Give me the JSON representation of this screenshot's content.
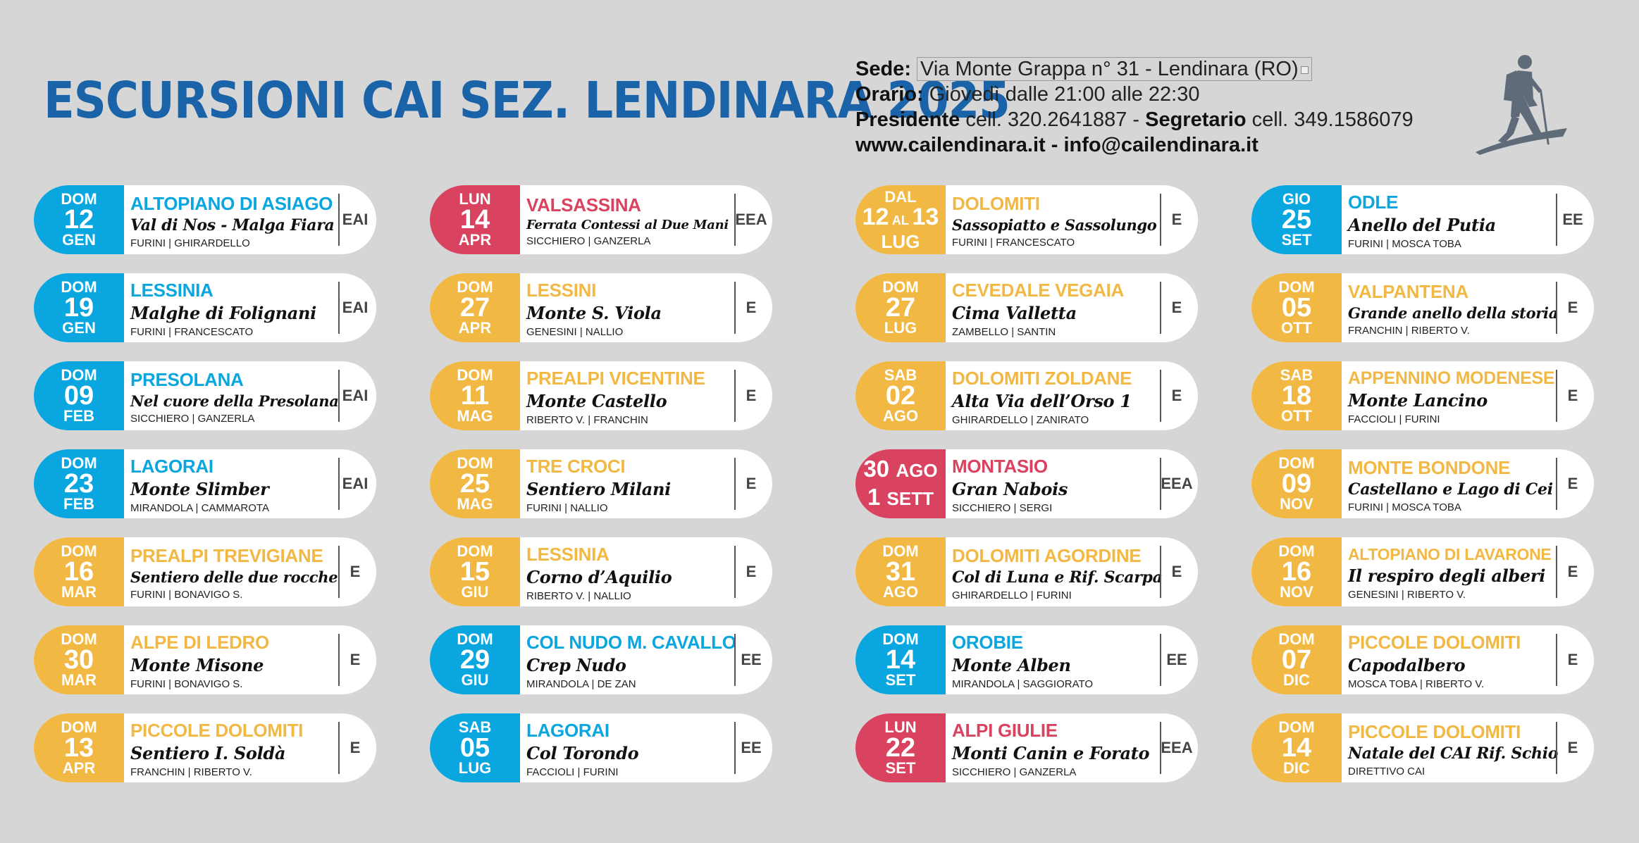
{
  "header": {
    "title": "ESCURSIONI CAI SEZ. LENDINARA 2025",
    "sede_label": "Sede:",
    "sede_value": "Via Monte Grappa n° 31 - Lendinara (RO)",
    "orario_label": "Orario:",
    "orario_value": "Giovedì dalle 21:00 alle 22:30",
    "presidente_label": "Presidente",
    "presidente_value": "cell. 320.2641887 -",
    "segretario_label": "Segretario",
    "segretario_value": "cell. 349.1586079",
    "web": "www.cailendinara.it - info@cailendinara.it",
    "hiker_icon": "hiker-icon"
  },
  "colors": {
    "blue": "#0aa6e0",
    "yellow": "#f2b844",
    "red": "#d94360",
    "title": "#1a63a8"
  },
  "events": [
    {
      "color": "blue",
      "dow": "DOM",
      "day": "12",
      "mon": "GEN",
      "area": "ALTOPIANO DI ASIAGO",
      "route": "Val di Nos - Malga Fiara",
      "leaders": "FURINI | GHIRARDELLO",
      "grade": "EAI"
    },
    {
      "color": "blue",
      "dow": "DOM",
      "day": "19",
      "mon": "GEN",
      "area": "LESSINIA",
      "route": "Malghe di Folignani",
      "leaders": "FURINI | FRANCESCATO",
      "grade": "EAI"
    },
    {
      "color": "blue",
      "dow": "DOM",
      "day": "09",
      "mon": "FEB",
      "area": "PRESOLANA",
      "route": "Nel cuore della Presolana",
      "leaders": "SICCHIERO | GANZERLA",
      "grade": "EAI"
    },
    {
      "color": "blue",
      "dow": "DOM",
      "day": "23",
      "mon": "FEB",
      "area": "LAGORAI",
      "route": "Monte Slimber",
      "leaders": "MIRANDOLA | CAMMAROTA",
      "grade": "EAI"
    },
    {
      "color": "yellow",
      "dow": "DOM",
      "day": "16",
      "mon": "MAR",
      "area": "PREALPI TREVIGIANE",
      "route": "Sentiero delle due rocche",
      "leaders": "FURINI | BONAVIGO S.",
      "grade": "E"
    },
    {
      "color": "yellow",
      "dow": "DOM",
      "day": "30",
      "mon": "MAR",
      "area": "ALPE DI LEDRO",
      "route": "Monte Misone",
      "leaders": "FURINI | BONAVIGO S.",
      "grade": "E"
    },
    {
      "color": "yellow",
      "dow": "DOM",
      "day": "13",
      "mon": "APR",
      "area": "PICCOLE DOLOMITI",
      "route": "Sentiero I. Soldà",
      "leaders": "FRANCHIN | RIBERTO V.",
      "grade": "E"
    },
    {
      "color": "red",
      "dow": "LUN",
      "day": "14",
      "mon": "APR",
      "area": "VALSASSINA",
      "route": "Ferrata Contessi al Due Mani",
      "leaders": "SICCHIERO | GANZERLA",
      "grade": "EEA"
    },
    {
      "color": "yellow",
      "dow": "DOM",
      "day": "27",
      "mon": "APR",
      "area": "LESSINI",
      "route": "Monte S. Viola",
      "leaders": "GENESINI | NALLIO",
      "grade": "E"
    },
    {
      "color": "yellow",
      "dow": "DOM",
      "day": "11",
      "mon": "MAG",
      "area": "PREALPI VICENTINE",
      "route": "Monte Castello",
      "leaders": "RIBERTO V. | FRANCHIN",
      "grade": "E"
    },
    {
      "color": "yellow",
      "dow": "DOM",
      "day": "25",
      "mon": "MAG",
      "area": "TRE CROCI",
      "route": "Sentiero Milani",
      "leaders": "FURINI | NALLIO",
      "grade": "E"
    },
    {
      "color": "yellow",
      "dow": "DOM",
      "day": "15",
      "mon": "GIU",
      "area": "LESSINIA",
      "route": "Corno d’Aquilio",
      "leaders": "RIBERTO  V. | NALLIO",
      "grade": "E"
    },
    {
      "color": "blue",
      "dow": "DOM",
      "day": "29",
      "mon": "GIU",
      "area": "COL NUDO M. CAVALLO",
      "route": "Crep Nudo",
      "leaders": "MIRANDOLA | DE ZAN",
      "grade": "EE"
    },
    {
      "color": "blue",
      "dow": "SAB",
      "day": "05",
      "mon": "LUG",
      "area": "LAGORAI",
      "route": "Col Torondo",
      "leaders": "FACCIOLI | FURINI",
      "grade": "EE"
    },
    {
      "color": "yellow",
      "kind": "range",
      "dow": "DAL",
      "day": "12",
      "day_sep": "AL",
      "day2": "13",
      "mon": "LUG",
      "area": "DOLOMITI",
      "route": "Sassopiatto e Sassolungo",
      "leaders": "FURINI | FRANCESCATO",
      "grade": "E"
    },
    {
      "color": "yellow",
      "dow": "DOM",
      "day": "27",
      "mon": "LUG",
      "area": "CEVEDALE VEGAIA",
      "route": "Cima Valletta",
      "leaders": "ZAMBELLO | SANTIN",
      "grade": "E"
    },
    {
      "color": "yellow",
      "dow": "SAB",
      "day": "02",
      "mon": "AGO",
      "area": "DOLOMITI ZOLDANE",
      "route": "Alta Via dell’Orso 1",
      "leaders": "GHIRARDELLO | ZANIRATO",
      "grade": "E"
    },
    {
      "color": "red",
      "kind": "two",
      "day": "30",
      "mon": "AGO",
      "day2": "1",
      "mon2": "SETT",
      "area": "MONTASIO",
      "route": "Gran Nabois",
      "leaders": "SICCHIERO | SERGI",
      "grade": "EEA"
    },
    {
      "color": "yellow",
      "dow": "DOM",
      "day": "31",
      "mon": "AGO",
      "area": "DOLOMITI AGORDINE",
      "route": "Col di Luna e Rif. Scarpa",
      "leaders": "GHIRARDELLO | FURINI",
      "grade": "E"
    },
    {
      "color": "blue",
      "dow": "DOM",
      "day": "14",
      "mon": "SET",
      "area": "OROBIE",
      "route": "Monte Alben",
      "leaders": "MIRANDOLA | SAGGIORATO",
      "grade": "EE"
    },
    {
      "color": "red",
      "dow": "LUN",
      "day": "22",
      "mon": "SET",
      "area": "ALPI GIULIE",
      "route": "Monti Canin e Forato",
      "leaders": "SICCHIERO | GANZERLA",
      "grade": "EEA"
    },
    {
      "color": "blue",
      "dow": "GIO",
      "day": "25",
      "mon": "SET",
      "area": "ODLE",
      "route": "Anello del Putia",
      "leaders": "FURINI | MOSCA TOBA",
      "grade": "EE"
    },
    {
      "color": "yellow",
      "dow": "DOM",
      "day": "05",
      "mon": "OTT",
      "area": "VALPANTENA",
      "route": "Grande anello della storia",
      "leaders": "FRANCHIN | RIBERTO V.",
      "grade": "E"
    },
    {
      "color": "yellow",
      "dow": "SAB",
      "day": "18",
      "mon": "OTT",
      "area": "APPENNINO MODENESE",
      "route": "Monte Lancino",
      "leaders": "FACCIOLI | FURINI",
      "grade": "E"
    },
    {
      "color": "yellow",
      "dow": "DOM",
      "day": "09",
      "mon": "NOV",
      "area": "MONTE BONDONE",
      "route": "Castellano e Lago di Cei",
      "leaders": "FURINI | MOSCA TOBA",
      "grade": "E"
    },
    {
      "color": "yellow",
      "dow": "DOM",
      "day": "16",
      "mon": "NOV",
      "area": "ALTOPIANO DI LAVARONE",
      "route": "Il respiro degli alberi",
      "leaders": "GENESINI | RIBERTO V.",
      "grade": "E"
    },
    {
      "color": "yellow",
      "dow": "DOM",
      "day": "07",
      "mon": "DIC",
      "area": "PICCOLE DOLOMITI",
      "route": "Capodalbero",
      "leaders": "MOSCA TOBA | RIBERTO V.",
      "grade": "E"
    },
    {
      "color": "yellow",
      "dow": "DOM",
      "day": "14",
      "mon": "DIC",
      "area": "PICCOLE DOLOMITI",
      "route": "Natale del CAI Rif. Schio",
      "leaders": "DIRETTIVO CAI",
      "grade": "E"
    }
  ]
}
